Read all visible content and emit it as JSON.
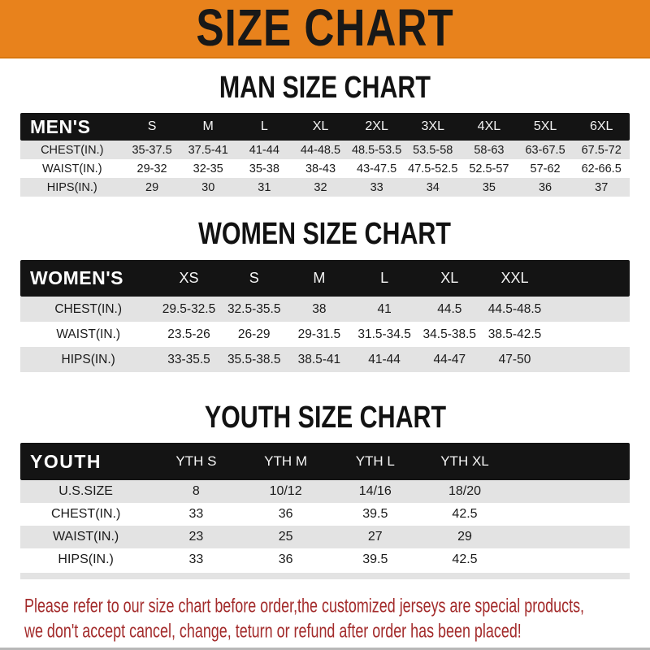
{
  "banner": {
    "title": "SIZE CHART",
    "bg_color": "#E8821C"
  },
  "colors": {
    "banner_bg": "#E8821C",
    "table_header_bg": "#141414",
    "row_alt_bg": "#E3E3E3",
    "footer_text": "#A32B2B"
  },
  "sections": [
    {
      "heading": "MAN SIZE CHART",
      "table": {
        "corner_label": "MEN'S",
        "columns": [
          "S",
          "M",
          "L",
          "XL",
          "2XL",
          "3XL",
          "4XL",
          "5XL",
          "6XL"
        ],
        "rows": [
          {
            "label": "CHEST(IN.)",
            "values": [
              "35-37.5",
              "37.5-41",
              "41-44",
              "44-48.5",
              "48.5-53.5",
              "53.5-58",
              "58-63",
              "63-67.5",
              "67.5-72"
            ]
          },
          {
            "label": "WAIST(IN.)",
            "values": [
              "29-32",
              "32-35",
              "35-38",
              "38-43",
              "43-47.5",
              "47.5-52.5",
              "52.5-57",
              "57-62",
              "62-66.5"
            ]
          },
          {
            "label": "HIPS(IN.)",
            "values": [
              "29",
              "30",
              "31",
              "32",
              "33",
              "34",
              "35",
              "36",
              "37"
            ]
          }
        ]
      }
    },
    {
      "heading": "WOMEN SIZE CHART",
      "table": {
        "corner_label": "WOMEN'S",
        "columns": [
          "XS",
          "S",
          "M",
          "L",
          "XL",
          "XXL"
        ],
        "rows": [
          {
            "label": "CHEST(IN.)",
            "values": [
              "29.5-32.5",
              "32.5-35.5",
              "38",
              "41",
              "44.5",
              "44.5-48.5"
            ]
          },
          {
            "label": "WAIST(IN.)",
            "values": [
              "23.5-26",
              "26-29",
              "29-31.5",
              "31.5-34.5",
              "34.5-38.5",
              "38.5-42.5"
            ]
          },
          {
            "label": "HIPS(IN.)",
            "values": [
              "33-35.5",
              "35.5-38.5",
              "38.5-41",
              "41-44",
              "44-47",
              "47-50"
            ]
          }
        ]
      }
    },
    {
      "heading": "YOUTH SIZE CHART",
      "table": {
        "corner_label": "YOUTH",
        "columns": [
          "YTH S",
          "YTH M",
          "YTH L",
          "YTH XL"
        ],
        "rows": [
          {
            "label": "U.S.SIZE",
            "values": [
              "8",
              "10/12",
              "14/16",
              "18/20"
            ]
          },
          {
            "label": "CHEST(IN.)",
            "values": [
              "33",
              "36",
              "39.5",
              "42.5"
            ]
          },
          {
            "label": "WAIST(IN.)",
            "values": [
              "23",
              "25",
              "27",
              "29"
            ]
          },
          {
            "label": "HIPS(IN.)",
            "values": [
              "33",
              "36",
              "39.5",
              "42.5"
            ]
          }
        ]
      }
    }
  ],
  "footer": {
    "line1": "Please refer to our size chart before order,the customized jerseys are special products,",
    "line2": "we don't accept cancel, change, teturn or refund after order has been placed!"
  },
  "chart_data": [
    {
      "type": "table",
      "title": "MAN SIZE CHART",
      "columns": [
        "S",
        "M",
        "L",
        "XL",
        "2XL",
        "3XL",
        "4XL",
        "5XL",
        "6XL"
      ],
      "rows": {
        "CHEST(IN.)": [
          "35-37.5",
          "37.5-41",
          "41-44",
          "44-48.5",
          "48.5-53.5",
          "53.5-58",
          "58-63",
          "63-67.5",
          "67.5-72"
        ],
        "WAIST(IN.)": [
          "29-32",
          "32-35",
          "35-38",
          "38-43",
          "43-47.5",
          "47.5-52.5",
          "52.5-57",
          "57-62",
          "62-66.5"
        ],
        "HIPS(IN.)": [
          "29",
          "30",
          "31",
          "32",
          "33",
          "34",
          "35",
          "36",
          "37"
        ]
      }
    },
    {
      "type": "table",
      "title": "WOMEN SIZE CHART",
      "columns": [
        "XS",
        "S",
        "M",
        "L",
        "XL",
        "XXL"
      ],
      "rows": {
        "CHEST(IN.)": [
          "29.5-32.5",
          "32.5-35.5",
          "38",
          "41",
          "44.5",
          "44.5-48.5"
        ],
        "WAIST(IN.)": [
          "23.5-26",
          "26-29",
          "29-31.5",
          "31.5-34.5",
          "34.5-38.5",
          "38.5-42.5"
        ],
        "HIPS(IN.)": [
          "33-35.5",
          "35.5-38.5",
          "38.5-41",
          "41-44",
          "44-47",
          "47-50"
        ]
      }
    },
    {
      "type": "table",
      "title": "YOUTH SIZE CHART",
      "columns": [
        "YTH S",
        "YTH M",
        "YTH L",
        "YTH XL"
      ],
      "rows": {
        "U.S.SIZE": [
          "8",
          "10/12",
          "14/16",
          "18/20"
        ],
        "CHEST(IN.)": [
          "33",
          "36",
          "39.5",
          "42.5"
        ],
        "WAIST(IN.)": [
          "23",
          "25",
          "27",
          "29"
        ],
        "HIPS(IN.)": [
          "33",
          "36",
          "39.5",
          "42.5"
        ]
      }
    }
  ]
}
